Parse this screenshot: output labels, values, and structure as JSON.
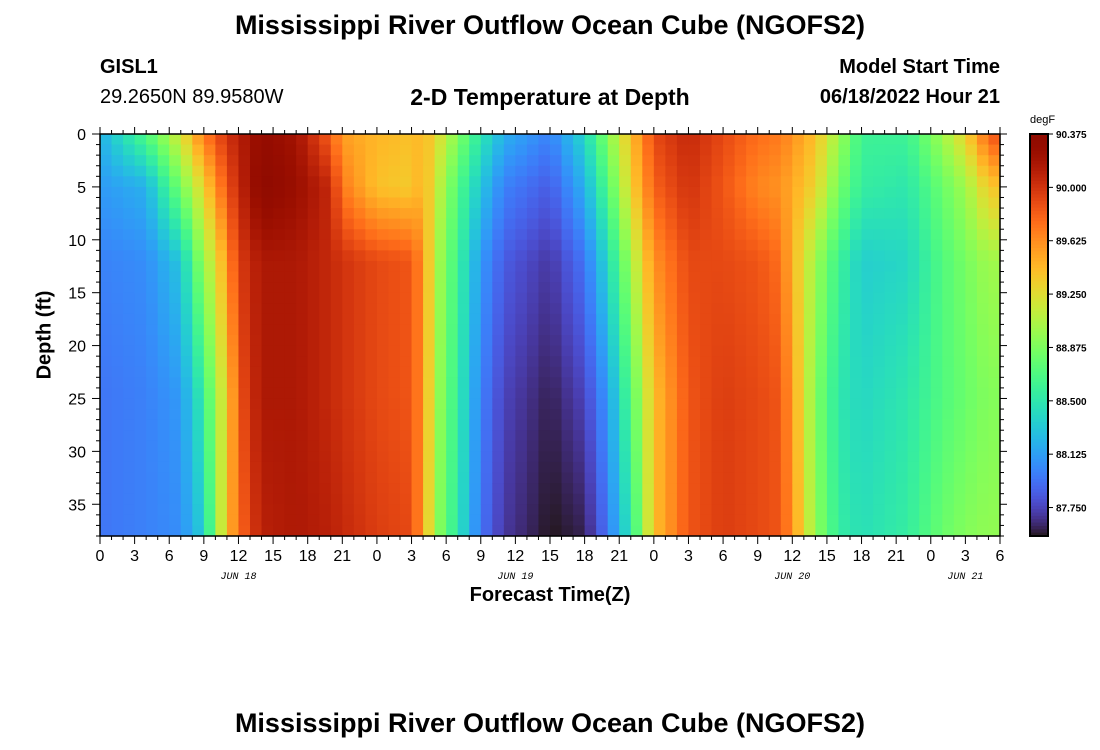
{
  "header": {
    "title": "Mississippi River Outflow Ocean Cube (NGOFS2)",
    "station_id": "GISL1",
    "station_coords": "29.2650N  89.9580W",
    "subtitle": "2-D Temperature at Depth",
    "start_label": "Model Start Time",
    "start_value": "06/18/2022 Hour 21"
  },
  "footer": {
    "title": "Mississippi River Outflow Ocean Cube (NGOFS2)"
  },
  "chart_data": {
    "type": "heatmap",
    "title": "2-D Temperature at Depth",
    "xlabel": "Forecast Time(Z)",
    "ylabel": "Depth (ft)",
    "x_hours_range": [
      0,
      78
    ],
    "x_tick_labels": [
      "0",
      "3",
      "6",
      "9",
      "12",
      "15",
      "18",
      "21",
      "0",
      "3",
      "6",
      "9",
      "12",
      "15",
      "18",
      "21",
      "0",
      "3",
      "6",
      "9",
      "12",
      "15",
      "18",
      "21",
      "0",
      "3",
      "6"
    ],
    "date_labels": [
      {
        "text": "JUN 18",
        "hour": 12
      },
      {
        "text": "JUN 19",
        "hour": 36
      },
      {
        "text": "JUN 20",
        "hour": 60
      },
      {
        "text": "JUN 21",
        "hour": 75
      }
    ],
    "y_ticks": [
      0,
      5,
      10,
      15,
      20,
      25,
      30,
      35
    ],
    "ylim": [
      0,
      38
    ],
    "y_inverted": true,
    "colorbar": {
      "unit": "degF",
      "min": 87.55,
      "max": 90.375,
      "tick_values": [
        90.375,
        90.0,
        89.625,
        89.25,
        88.875,
        88.5,
        88.125,
        87.75
      ],
      "tick_labels": [
        "90.375",
        "90.000",
        "89.625",
        "89.250",
        "88.875",
        "88.500",
        "88.125",
        "87.750"
      ],
      "colormap": "turbo"
    },
    "grid": {
      "cols": 78,
      "rows": 38
    },
    "profiles": [
      {
        "hour": 0,
        "values": [
          88.2,
          88.1,
          88.0,
          87.95,
          87.95
        ]
      },
      {
        "hour": 4,
        "values": [
          88.7,
          88.2,
          88.05,
          88.0,
          88.0
        ]
      },
      {
        "hour": 7,
        "values": [
          89.2,
          88.85,
          88.3,
          88.1,
          88.05
        ]
      },
      {
        "hour": 9,
        "values": [
          89.7,
          89.3,
          89.0,
          88.55,
          88.35
        ]
      },
      {
        "hour": 10,
        "values": [
          89.85,
          89.6,
          89.2,
          89.0,
          88.9
        ]
      },
      {
        "hour": 11,
        "values": [
          90.0,
          89.85,
          89.6,
          89.3,
          89.4
        ]
      },
      {
        "hour": 12,
        "values": [
          90.1,
          90.05,
          89.95,
          89.85,
          89.75
        ]
      },
      {
        "hour": 14,
        "values": [
          90.3,
          90.35,
          90.15,
          90.15,
          90.1
        ]
      },
      {
        "hour": 17,
        "values": [
          90.2,
          90.25,
          90.15,
          90.15,
          90.15
        ]
      },
      {
        "hour": 20,
        "values": [
          89.8,
          90.05,
          90.05,
          90.05,
          90.1
        ]
      },
      {
        "hour": 21,
        "values": [
          89.55,
          89.7,
          90.0,
          90.0,
          90.05
        ]
      },
      {
        "hour": 24,
        "values": [
          89.45,
          89.4,
          89.9,
          89.9,
          89.95
        ]
      },
      {
        "hour": 27,
        "values": [
          89.4,
          89.35,
          89.85,
          89.85,
          89.9
        ]
      },
      {
        "hour": 28,
        "values": [
          89.45,
          89.5,
          89.6,
          89.6,
          89.55
        ]
      },
      {
        "hour": 29,
        "values": [
          89.3,
          89.2,
          89.1,
          89.05,
          89.0
        ]
      },
      {
        "hour": 31,
        "values": [
          88.9,
          88.7,
          88.6,
          88.55,
          88.5
        ]
      },
      {
        "hour": 33,
        "values": [
          88.5,
          88.3,
          88.1,
          88.0,
          87.95
        ]
      },
      {
        "hour": 35,
        "values": [
          88.2,
          88.0,
          87.85,
          87.75,
          87.7
        ]
      },
      {
        "hour": 39,
        "values": [
          88.0,
          87.85,
          87.7,
          87.6,
          87.55
        ]
      },
      {
        "hour": 42,
        "values": [
          88.4,
          88.2,
          87.95,
          87.75,
          87.6
        ]
      },
      {
        "hour": 44,
        "values": [
          88.9,
          88.7,
          88.4,
          88.1,
          87.95
        ]
      },
      {
        "hour": 46,
        "values": [
          89.4,
          89.3,
          89.0,
          88.7,
          88.5
        ]
      },
      {
        "hour": 48,
        "values": [
          89.9,
          89.8,
          89.6,
          89.4,
          89.4
        ]
      },
      {
        "hour": 51,
        "values": [
          90.05,
          90.0,
          89.9,
          89.85,
          89.85
        ]
      },
      {
        "hour": 54,
        "values": [
          89.9,
          89.85,
          89.9,
          89.95,
          89.95
        ]
      },
      {
        "hour": 57,
        "values": [
          89.75,
          89.65,
          89.85,
          89.9,
          89.9
        ]
      },
      {
        "hour": 59,
        "values": [
          89.7,
          89.6,
          89.75,
          89.85,
          89.85
        ]
      },
      {
        "hour": 60,
        "values": [
          89.6,
          89.5,
          89.45,
          89.55,
          89.6
        ]
      },
      {
        "hour": 62,
        "values": [
          89.4,
          89.3,
          89.0,
          88.9,
          88.95
        ]
      },
      {
        "hour": 64,
        "values": [
          89.0,
          88.85,
          88.6,
          88.5,
          88.55
        ]
      },
      {
        "hour": 66,
        "values": [
          88.6,
          88.55,
          88.35,
          88.4,
          88.45
        ]
      },
      {
        "hour": 70,
        "values": [
          88.6,
          88.5,
          88.4,
          88.5,
          88.55
        ]
      },
      {
        "hour": 73,
        "values": [
          89.0,
          88.8,
          88.7,
          88.7,
          88.8
        ]
      },
      {
        "hour": 75,
        "values": [
          89.3,
          89.0,
          88.85,
          88.8,
          88.9
        ]
      },
      {
        "hour": 77,
        "values": [
          89.8,
          89.35,
          89.0,
          88.9,
          88.95
        ]
      },
      {
        "hour": 78,
        "values": [
          89.9,
          89.4,
          89.0,
          88.9,
          88.95
        ]
      }
    ],
    "profile_depths": [
      0,
      5,
      12,
      25,
      38
    ]
  }
}
